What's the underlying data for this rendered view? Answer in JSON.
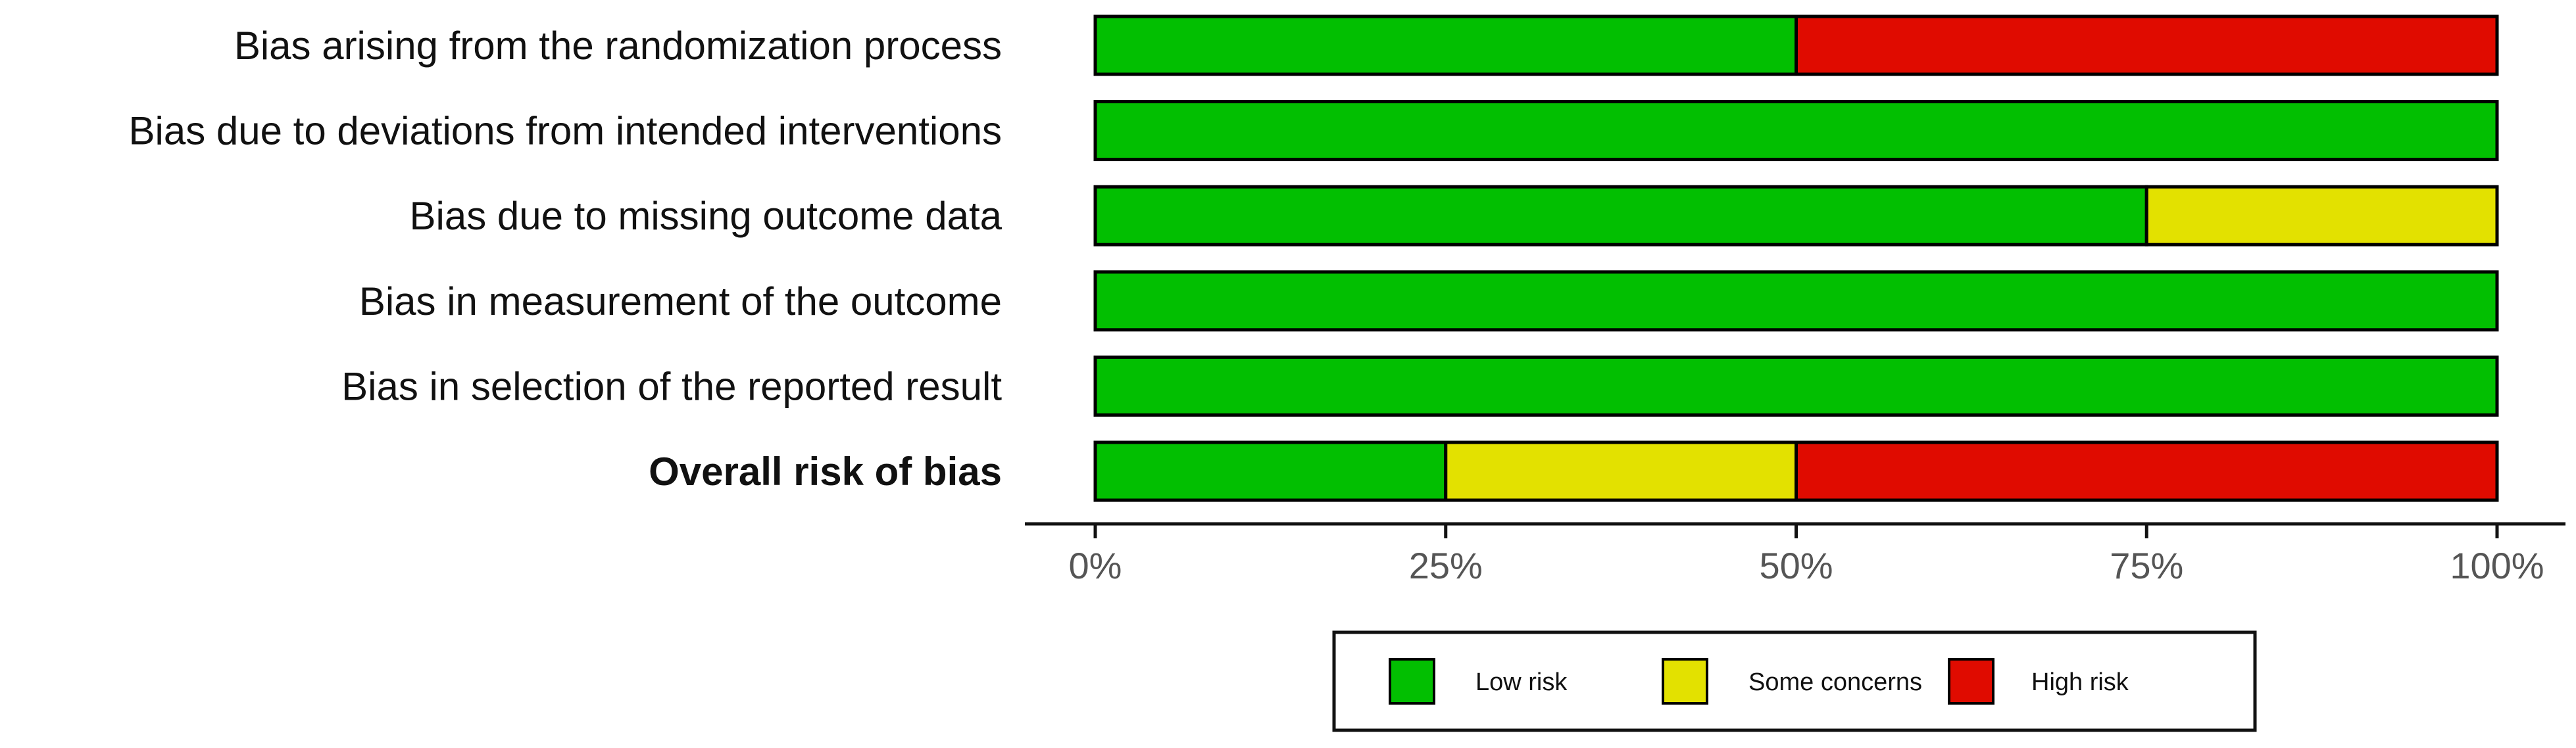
{
  "chart_data": {
    "type": "bar",
    "orientation": "horizontal",
    "stacked": true,
    "categories": [
      "Bias arising from the randomization process",
      "Bias due to deviations from intended interventions",
      "Bias due to missing outcome data",
      "Bias in measurement of the outcome",
      "Bias in selection of the reported result",
      "Overall risk of bias"
    ],
    "emphasized_category": "Overall risk of bias",
    "series": [
      {
        "name": "Low risk",
        "color": "#02bf01",
        "values": [
          50,
          100,
          75,
          100,
          100,
          25
        ]
      },
      {
        "name": "Some concerns",
        "color": "#e3e100",
        "values": [
          0,
          0,
          25,
          0,
          0,
          25
        ]
      },
      {
        "name": "High risk",
        "color": "#e00b00",
        "values": [
          50,
          0,
          0,
          0,
          0,
          50
        ]
      }
    ],
    "xlim": [
      0,
      100
    ],
    "x_ticks": [
      0,
      25,
      50,
      75,
      100
    ],
    "x_tick_labels": [
      "0%",
      "25%",
      "50%",
      "75%",
      "100%"
    ],
    "title": "",
    "xlabel": "",
    "ylabel": "",
    "grid": false,
    "legend": "bottom"
  }
}
